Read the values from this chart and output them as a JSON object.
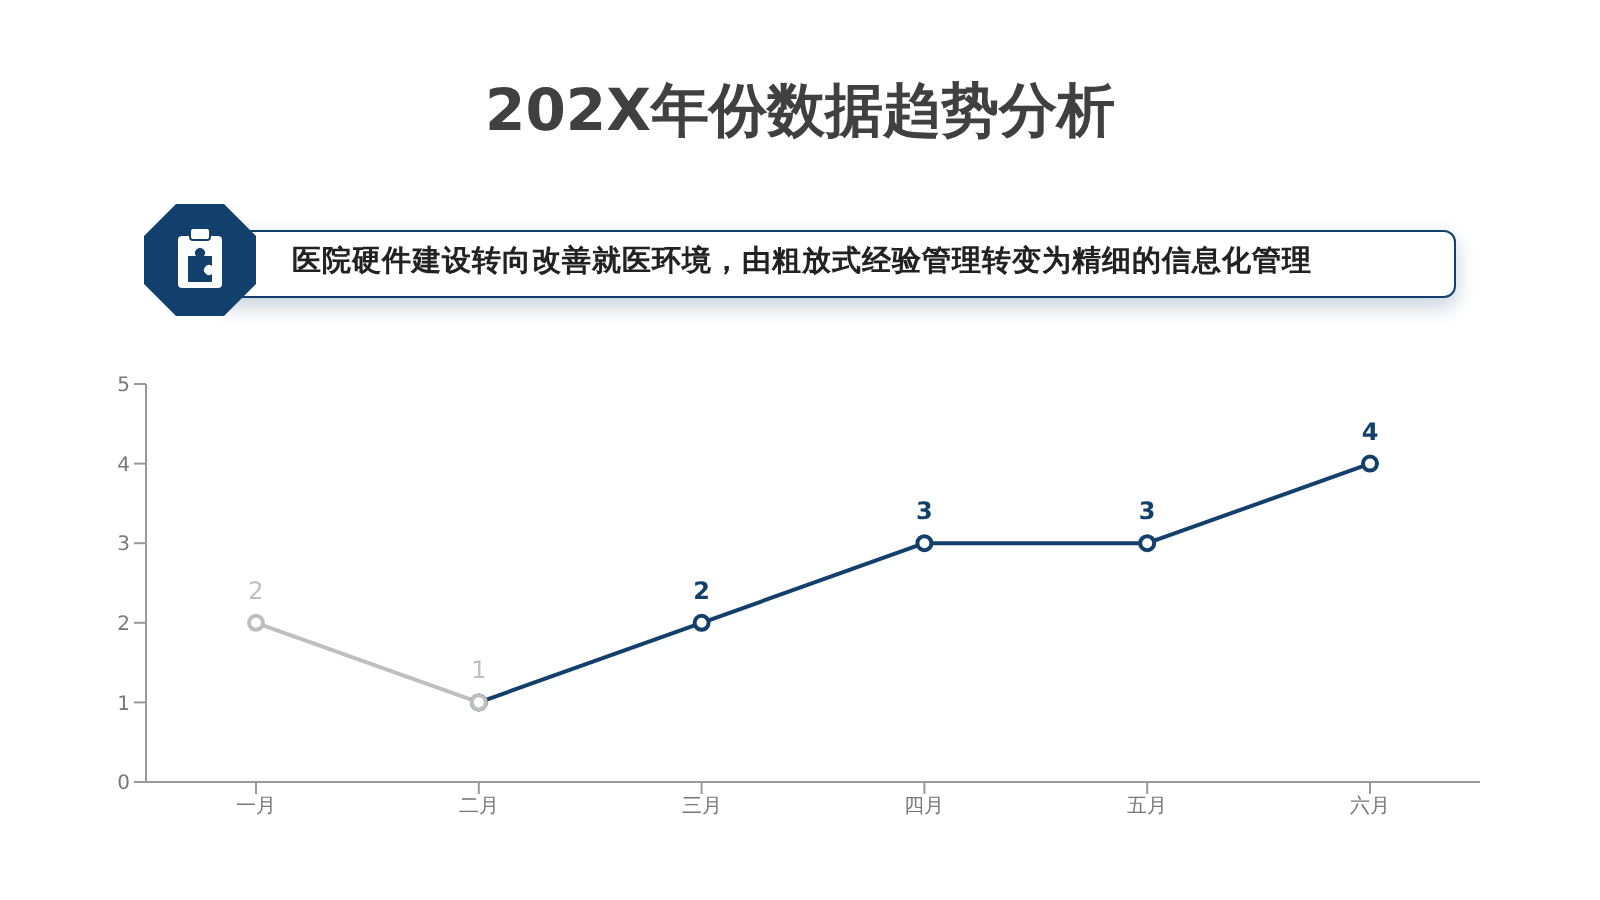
{
  "chart_data": {
    "type": "line",
    "title": "202X年份数据趋势分析",
    "subtitle": "医院硬件建设转向改善就医环境，由粗放式经验管理转变为精细的信息化管理",
    "categories": [
      "一月",
      "二月",
      "三月",
      "四月",
      "五月",
      "六月"
    ],
    "series": [
      {
        "color": "#123f6b",
        "values": [
          null,
          1,
          2,
          3,
          3,
          4
        ],
        "value_labels": [
          null,
          null,
          "2",
          "3",
          "3",
          "4"
        ]
      },
      {
        "color": "#bfbfbf",
        "values": [
          2,
          1,
          null,
          null,
          null,
          null
        ],
        "value_labels": [
          "2",
          "1",
          null,
          null,
          null,
          null
        ]
      }
    ],
    "ylim": [
      0,
      5
    ],
    "yticks": [
      0,
      1,
      2,
      3,
      4,
      5
    ],
    "grid": false,
    "legend": false,
    "marker": "circle"
  }
}
